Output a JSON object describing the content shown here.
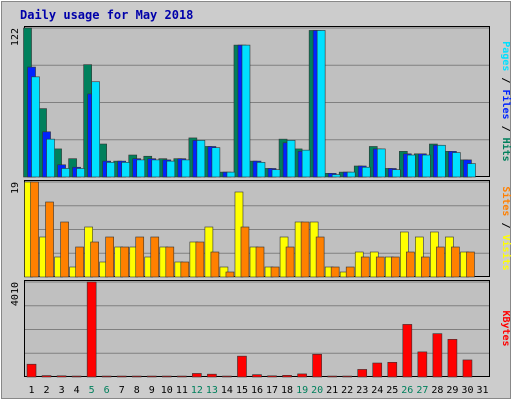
{
  "chart_data": {
    "type": "bar",
    "title": "Daily usage for May 2018",
    "categories": [
      "1",
      "2",
      "3",
      "4",
      "5",
      "6",
      "7",
      "8",
      "9",
      "10",
      "11",
      "12",
      "13",
      "14",
      "15",
      "16",
      "17",
      "18",
      "19",
      "20",
      "21",
      "22",
      "23",
      "24",
      "25",
      "26",
      "27",
      "28",
      "29",
      "30",
      "31"
    ],
    "weekend_days": [
      5,
      6,
      12,
      13,
      19,
      20,
      26,
      27
    ],
    "panels": [
      {
        "id": "hits-files-pages",
        "ymax": 122,
        "ymax_label": "122",
        "ylabel_parts": [
          "Pages",
          "Files",
          "Hits"
        ],
        "grid": true,
        "series": [
          {
            "name": "Hits",
            "color": "#00805c",
            "values": [
              122,
              56,
              23,
              15,
              92,
              27,
              13,
              18,
              17,
              15,
              15,
              32,
              25,
              4,
              108,
              13,
              7,
              31,
              23,
              120,
              3,
              4,
              9,
              25,
              7,
              21,
              19,
              27,
              21,
              14,
              0
            ]
          },
          {
            "name": "Files",
            "color": "#0024ff",
            "values": [
              90,
              37,
              10,
              8,
              68,
              13,
              13,
              15,
              15,
              14,
              15,
              30,
              25,
              4,
              108,
              13,
              7,
              28,
              21,
              120,
              3,
              4,
              9,
              23,
              7,
              19,
              19,
              26,
              21,
              14,
              0
            ]
          },
          {
            "name": "Pages",
            "color": "#00e0ff",
            "values": [
              82,
              31,
              7,
              7,
              78,
              12,
              12,
              14,
              14,
              13,
              14,
              30,
              24,
              4,
              108,
              12,
              6,
              30,
              22,
              120,
              2,
              4,
              8,
              23,
              6,
              18,
              18,
              26,
              20,
              11,
              0
            ]
          }
        ]
      },
      {
        "id": "visits-sites",
        "ymax": 19,
        "ymax_label": "19",
        "ylabel_parts": [
          "Sites",
          "Visits"
        ],
        "grid": true,
        "series": [
          {
            "name": "Visits",
            "color": "#ffff00",
            "values": [
              19,
              8,
              4,
              2,
              10,
              3,
              6,
              6,
              4,
              6,
              3,
              7,
              10,
              2,
              17,
              6,
              2,
              8,
              11,
              11,
              2,
              1,
              5,
              5,
              4,
              9,
              8,
              9,
              8,
              5,
              0
            ]
          },
          {
            "name": "Sites",
            "color": "#ff8000",
            "values": [
              19,
              15,
              11,
              6,
              7,
              8,
              6,
              8,
              8,
              6,
              3,
              7,
              5,
              1,
              10,
              6,
              2,
              6,
              11,
              8,
              2,
              2,
              4,
              4,
              4,
              5,
              4,
              6,
              6,
              5,
              0
            ]
          }
        ]
      },
      {
        "id": "kbytes",
        "ymax": 4010,
        "ymax_label": "4010",
        "ylabel_parts": [
          "KBytes"
        ],
        "grid": true,
        "series": [
          {
            "name": "KBytes",
            "color": "#ff0000",
            "values": [
              540,
              60,
              50,
              40,
              4010,
              40,
              40,
              40,
              40,
              40,
              40,
              150,
              120,
              40,
              880,
              100,
              50,
              70,
              130,
              960,
              40,
              40,
              320,
              590,
              620,
              2220,
              1060,
              1830,
              1590,
              720,
              0
            ]
          }
        ]
      }
    ]
  }
}
